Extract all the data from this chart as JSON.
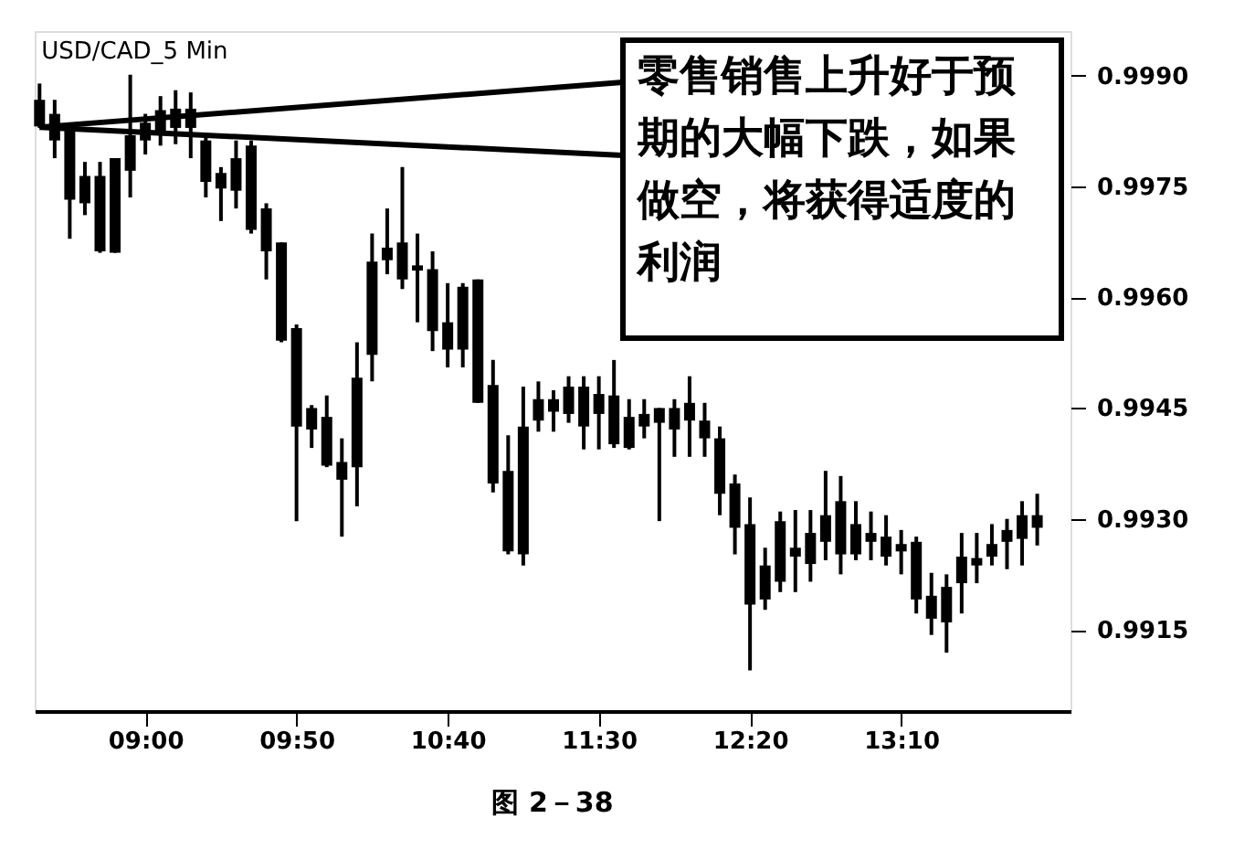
{
  "chart_data": {
    "type": "candlestick",
    "title": "USD/CAD_5 Min",
    "color": "#000000",
    "x": [
      8.4167,
      8.5,
      8.5833,
      8.6667,
      8.75,
      8.8333,
      8.9167,
      9,
      9.0833,
      9.1667,
      9.25,
      9.3333,
      9.4167,
      9.5,
      9.5833,
      9.6667,
      9.75,
      9.8333,
      9.9167,
      10,
      10.0833,
      10.1667,
      10.25,
      10.3333,
      10.4167,
      10.5,
      10.5833,
      10.6667,
      10.75,
      10.8333,
      10.9167,
      11,
      11.0833,
      11.1667,
      11.25,
      11.3333,
      11.4167,
      11.5,
      11.5833,
      11.6667,
      11.75,
      11.8333,
      11.9167,
      12,
      12.0833,
      12.1667,
      12.25,
      12.3333,
      12.4167,
      12.5,
      12.5833,
      12.6667,
      12.75,
      12.8333,
      12.9167,
      13,
      13.0833,
      13.1667,
      13.25,
      13.3333,
      13.4167,
      13.5,
      13.5833,
      13.6667,
      13.75,
      13.8333,
      13.9167
    ],
    "ohlc": [
      [
        0.99867,
        0.99889,
        0.99829,
        0.99831
      ],
      [
        0.99848,
        0.99867,
        0.99788,
        0.99812
      ],
      [
        0.99829,
        0.99831,
        0.99679,
        0.99732
      ],
      [
        0.99764,
        0.99783,
        0.99711,
        0.99727
      ],
      [
        0.99764,
        0.99783,
        0.9966,
        0.99662
      ],
      [
        0.99788,
        0.99788,
        0.9966,
        0.9966
      ],
      [
        0.99819,
        0.99901,
        0.99735,
        0.99771
      ],
      [
        0.99836,
        0.99848,
        0.99793,
        0.99812
      ],
      [
        0.99853,
        0.99872,
        0.99805,
        0.99819
      ],
      [
        0.99855,
        0.9988,
        0.99807,
        0.99829
      ],
      [
        0.99855,
        0.99877,
        0.99788,
        0.99829
      ],
      [
        0.99812,
        0.99817,
        0.99735,
        0.99756
      ],
      [
        0.99768,
        0.99776,
        0.99703,
        0.99747
      ],
      [
        0.99788,
        0.99812,
        0.9972,
        0.99744
      ],
      [
        0.99805,
        0.99812,
        0.99686,
        0.99691
      ],
      [
        0.9972,
        0.99727,
        0.99624,
        0.99662
      ],
      [
        0.99674,
        0.99674,
        0.99539,
        0.99541
      ],
      [
        0.99558,
        0.99563,
        0.99297,
        0.99425
      ],
      [
        0.9945,
        0.99454,
        0.99396,
        0.99421
      ],
      [
        0.99438,
        0.99467,
        0.9937,
        0.99372
      ],
      [
        0.99377,
        0.99409,
        0.99276,
        0.99353
      ],
      [
        0.99491,
        0.99539,
        0.99317,
        0.9937
      ],
      [
        0.99648,
        0.99686,
        0.99486,
        0.99522
      ],
      [
        0.99667,
        0.9972,
        0.99631,
        0.9965
      ],
      [
        0.99674,
        0.99776,
        0.99611,
        0.99624
      ],
      [
        0.99643,
        0.99686,
        0.99566,
        0.99636
      ],
      [
        0.99638,
        0.99662,
        0.99527,
        0.99554
      ],
      [
        0.99566,
        0.99619,
        0.99505,
        0.99529
      ],
      [
        0.99614,
        0.99619,
        0.99505,
        0.99529
      ],
      [
        0.99624,
        0.99624,
        0.99457,
        0.99457
      ],
      [
        0.99481,
        0.99515,
        0.99336,
        0.99348
      ],
      [
        0.99365,
        0.99413,
        0.99252,
        0.99256
      ],
      [
        0.99425,
        0.99479,
        0.99237,
        0.99252
      ],
      [
        0.99462,
        0.99486,
        0.99418,
        0.99433
      ],
      [
        0.99462,
        0.99474,
        0.99418,
        0.99445
      ],
      [
        0.99479,
        0.99493,
        0.9943,
        0.99442
      ],
      [
        0.99479,
        0.99493,
        0.99394,
        0.99425
      ],
      [
        0.99469,
        0.99493,
        0.99394,
        0.99442
      ],
      [
        0.99467,
        0.99515,
        0.99396,
        0.99401
      ],
      [
        0.99438,
        0.99462,
        0.99394,
        0.99396
      ],
      [
        0.99442,
        0.99462,
        0.99409,
        0.99425
      ],
      [
        0.9945,
        0.9945,
        0.99297,
        0.9943
      ],
      [
        0.9945,
        0.99462,
        0.99384,
        0.99421
      ],
      [
        0.99457,
        0.99493,
        0.99384,
        0.99433
      ],
      [
        0.99433,
        0.99457,
        0.99384,
        0.99409
      ],
      [
        0.99409,
        0.99425,
        0.99305,
        0.99334
      ],
      [
        0.99348,
        0.9936,
        0.99252,
        0.99288
      ],
      [
        0.99293,
        0.99329,
        0.99095,
        0.99184
      ],
      [
        0.99237,
        0.99261,
        0.99177,
        0.99191
      ],
      [
        0.99297,
        0.9931,
        0.99201,
        0.99215
      ],
      [
        0.99261,
        0.99312,
        0.99201,
        0.99249
      ],
      [
        0.99281,
        0.99312,
        0.99215,
        0.99239
      ],
      [
        0.99305,
        0.99365,
        0.99244,
        0.99269
      ],
      [
        0.99324,
        0.99358,
        0.99225,
        0.99252
      ],
      [
        0.99293,
        0.99324,
        0.99244,
        0.99252
      ],
      [
        0.99281,
        0.9931,
        0.99244,
        0.99269
      ],
      [
        0.99276,
        0.99305,
        0.99237,
        0.99249
      ],
      [
        0.99266,
        0.99285,
        0.99225,
        0.99256
      ],
      [
        0.99269,
        0.99276,
        0.99172,
        0.99191
      ],
      [
        0.99196,
        0.99227,
        0.99143,
        0.99165
      ],
      [
        0.99208,
        0.99225,
        0.99119,
        0.9916
      ],
      [
        0.99249,
        0.99281,
        0.99172,
        0.99213
      ],
      [
        0.99247,
        0.99281,
        0.99213,
        0.99237
      ],
      [
        0.99266,
        0.99293,
        0.99237,
        0.99249
      ],
      [
        0.99285,
        0.993,
        0.99232,
        0.99269
      ],
      [
        0.99305,
        0.99324,
        0.99237,
        0.99273
      ],
      [
        0.99305,
        0.99334,
        0.99264,
        0.99288
      ]
    ],
    "xlim": [
      8.39,
      14.1
    ],
    "xticks": [
      {
        "value": 9,
        "label": "09:00"
      },
      {
        "value": 9.8333,
        "label": "09:50"
      },
      {
        "value": 10.6667,
        "label": "10:40"
      },
      {
        "value": 11.5,
        "label": "11:30"
      },
      {
        "value": 12.3333,
        "label": "12:20"
      },
      {
        "value": 13.1667,
        "label": "13:10"
      }
    ],
    "ylim": [
      0.9904,
      0.9996
    ],
    "yticks": [
      {
        "value": 0.9915,
        "label": "0.9915"
      },
      {
        "value": 0.993,
        "label": "0.9930"
      },
      {
        "value": 0.9945,
        "label": "0.9945"
      },
      {
        "value": 0.996,
        "label": "0.9960"
      },
      {
        "value": 0.9975,
        "label": "0.9975"
      },
      {
        "value": 0.999,
        "label": "0.9990"
      }
    ],
    "grid": false,
    "annotations": [
      {
        "text": "零售销售上升好于预期的大幅下跌，如果做空，将获得适度的利润",
        "x": 8.4167,
        "y": 0.9983
      },
      "图 2－38"
    ]
  }
}
